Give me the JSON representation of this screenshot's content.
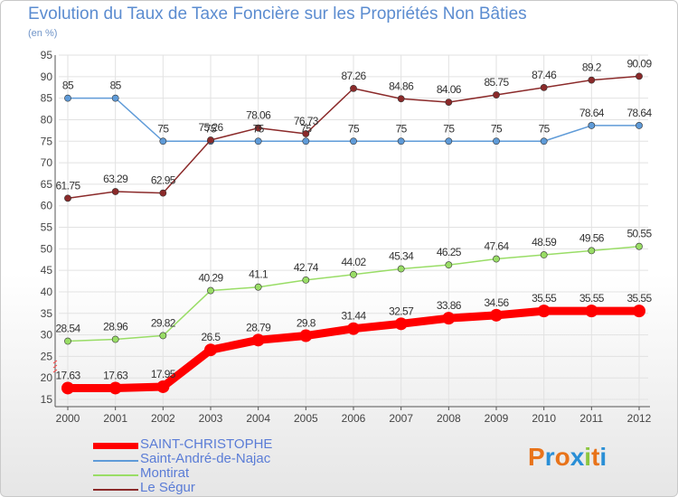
{
  "chart_data": {
    "type": "line",
    "title": "Evolution du Taux de Taxe Foncière sur les Propriétés Non Bâties",
    "ylabel": "(en %)",
    "categories": [
      "2000",
      "2001",
      "2002",
      "2003",
      "2004",
      "2005",
      "2006",
      "2007",
      "2008",
      "2009",
      "2010",
      "2011",
      "2012"
    ],
    "ylim": [
      15,
      95
    ],
    "yticks": [
      "15",
      "20",
      "25",
      "30",
      "35",
      "40",
      "45",
      "50",
      "55",
      "60",
      "65",
      "70",
      "75",
      "80",
      "85",
      "90",
      "95"
    ],
    "series": [
      {
        "name": "SAINT-CHRISTOPHE",
        "color": "#ff0000",
        "values": [
          17.63,
          17.63,
          17.95,
          26.5,
          28.79,
          29.8,
          31.44,
          32.57,
          33.86,
          34.56,
          35.55,
          35.55,
          35.55
        ],
        "labels": [
          "17.63",
          "17.63",
          "17.95",
          "26.5",
          "28.79",
          "29.8",
          "31.44",
          "32.57",
          "33.86",
          "34.56",
          "35.55",
          "35.55",
          "35.55"
        ]
      },
      {
        "name": "Saint-André-de-Najac",
        "color": "#5f9bd8",
        "values": [
          85,
          85,
          75,
          75,
          75,
          75,
          75,
          75,
          75,
          75,
          75,
          78.64,
          78.64
        ],
        "labels": [
          "85",
          "85",
          "75",
          "75",
          "75",
          "75",
          "75",
          "75",
          "75",
          "75",
          "75",
          "78.64",
          "78.64"
        ]
      },
      {
        "name": "Montirat",
        "color": "#99dd66",
        "values": [
          28.54,
          28.96,
          29.82,
          40.29,
          41.1,
          42.74,
          44.02,
          45.34,
          46.25,
          47.64,
          48.59,
          49.56,
          50.55
        ],
        "labels": [
          "28.54",
          "28.96",
          "29.82",
          "40.29",
          "41.1",
          "42.74",
          "44.02",
          "45.34",
          "46.25",
          "47.64",
          "48.59",
          "49.56",
          "50.55"
        ]
      },
      {
        "name": "Le Ségur",
        "color": "#8b2a2a",
        "values": [
          61.75,
          63.29,
          62.95,
          75.26,
          78.06,
          76.73,
          87.26,
          84.86,
          84.06,
          85.75,
          87.46,
          89.2,
          90.09
        ],
        "labels": [
          "61.75",
          "63.29",
          "62.95",
          "75.26",
          "78.06",
          "76.73",
          "87.26",
          "84.86",
          "84.06",
          "85.75",
          "87.46",
          "89.2",
          "90.09"
        ]
      }
    ]
  },
  "logo": {
    "letters": [
      "P",
      "r",
      "o",
      "x",
      "i",
      "t",
      "i"
    ],
    "colors": [
      "#e8731a",
      "#2a8fd6",
      "#e8731a",
      "#2a8fd6",
      "#8cc63f",
      "#e8731a",
      "#2a8fd6"
    ]
  }
}
